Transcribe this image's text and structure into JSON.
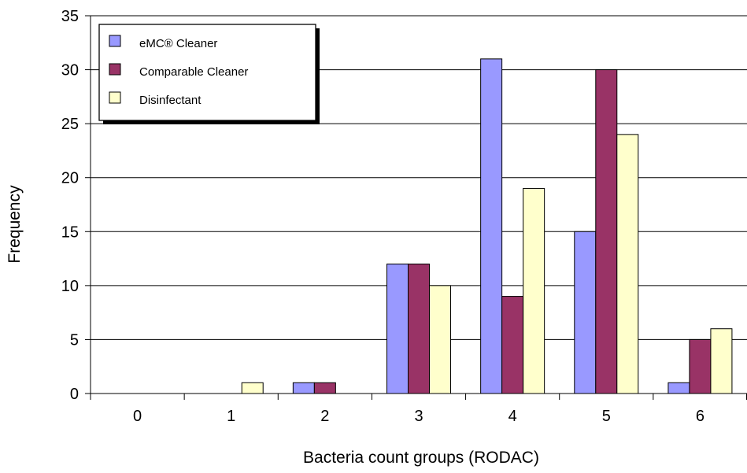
{
  "chart_data": {
    "type": "bar",
    "categories": [
      "0",
      "1",
      "2",
      "3",
      "4",
      "5",
      "6"
    ],
    "series": [
      {
        "name": "eMC® Cleaner",
        "values": [
          0,
          0,
          1,
          12,
          31,
          15,
          1
        ],
        "color": "#9999ff"
      },
      {
        "name": "Comparable Cleaner",
        "values": [
          0,
          0,
          1,
          12,
          9,
          30,
          5
        ],
        "color": "#993366"
      },
      {
        "name": "Disinfectant",
        "values": [
          0,
          1,
          0,
          10,
          19,
          24,
          6
        ],
        "color": "#ffffcc"
      }
    ],
    "title": "",
    "xlabel": "Bacteria count groups (RODAC)",
    "ylabel": "Frequency",
    "ylim": [
      0,
      35
    ],
    "yticks": [
      "0",
      "5",
      "10",
      "15",
      "20",
      "25",
      "30",
      "35"
    ],
    "grid": true,
    "legend_position": "top-left"
  }
}
